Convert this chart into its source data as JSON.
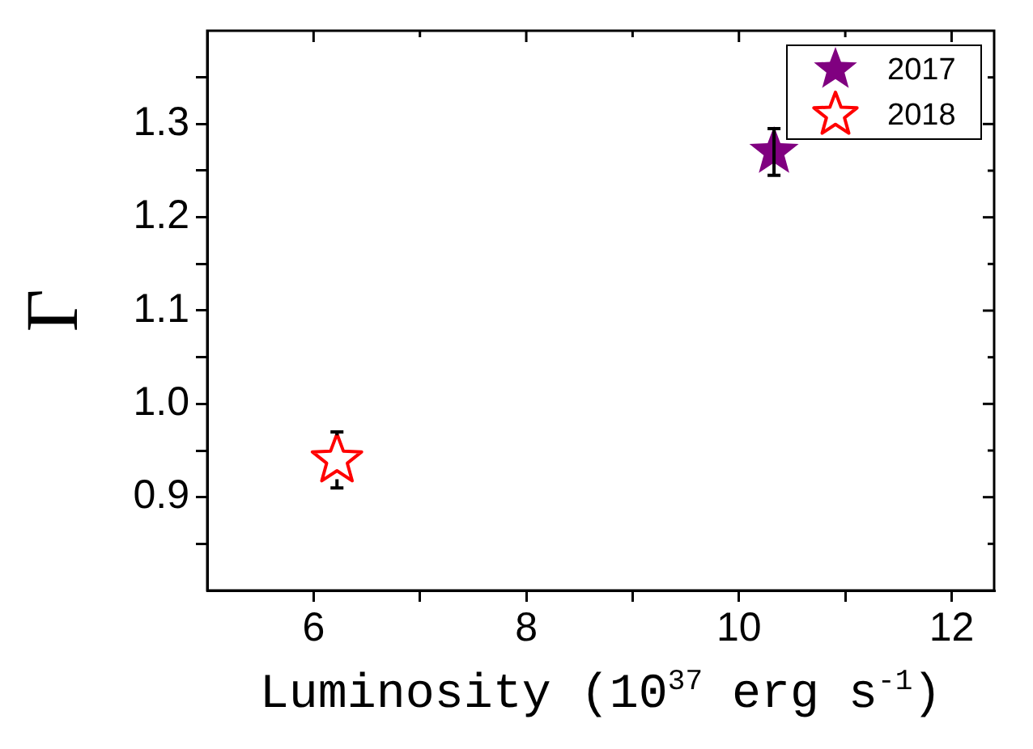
{
  "chart_data": {
    "type": "scatter",
    "xlabel": "Luminosity (10$^{37}$ erg s$^{-1}$)",
    "ylabel": "Γ",
    "series": [
      {
        "name": "2017",
        "color": "#800080",
        "x": [
          10.33
        ],
        "values": [
          1.27
        ],
        "errors": [
          0.025
        ]
      },
      {
        "name": "2018",
        "color": "#ff0000",
        "x": [
          6.22
        ],
        "values": [
          0.94
        ],
        "errors": [
          0.03
        ]
      }
    ],
    "xlim": [
      5,
      12.4
    ],
    "xticks": [
      6,
      {
        "value": 7,
        "label": null
      },
      8,
      {
        "value": 9,
        "label": null
      },
      10,
      {
        "value": 11,
        "label": null
      },
      12
    ],
    "ylim": [
      0.8,
      1.4
    ],
    "yticks": [
      {
        "value": 0.85,
        "label": null
      },
      0.9,
      {
        "value": 0.95,
        "label": null
      },
      {
        "value": 1,
        "label": "1.0"
      },
      {
        "value": 1.05,
        "label": null
      },
      1.1,
      {
        "value": 1.15,
        "label": null
      },
      1.2,
      {
        "value": 1.25,
        "label": null
      },
      1.3,
      {
        "value": 1.35,
        "label": null
      }
    ],
    "marker": "star",
    "legend": "top right",
    "grid": false
  }
}
